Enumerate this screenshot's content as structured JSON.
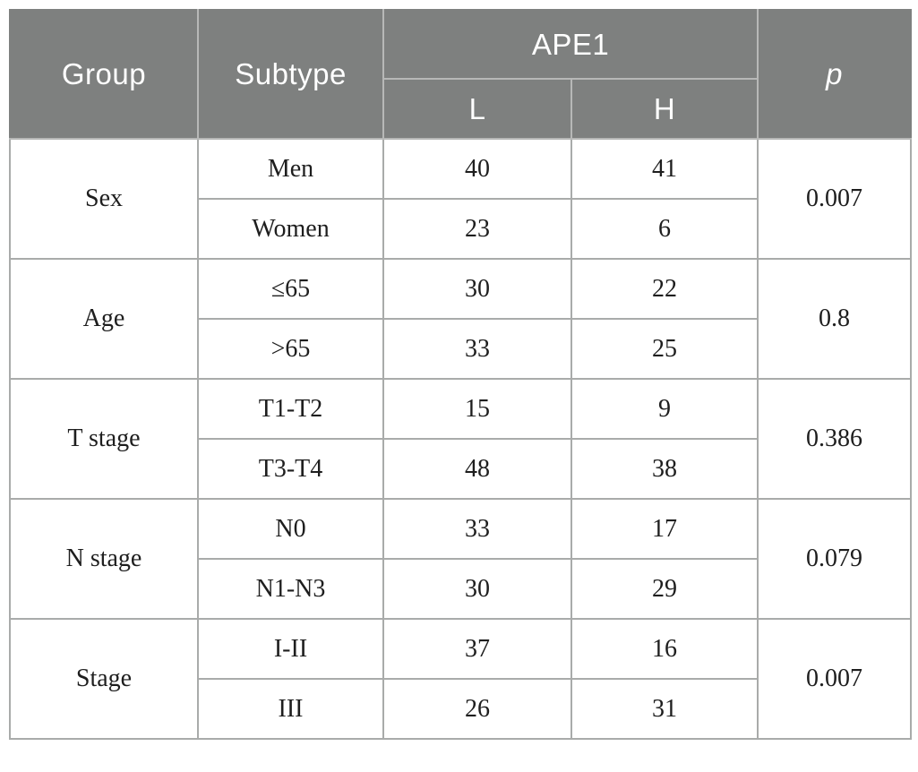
{
  "figure": {
    "columns": {
      "group": "Group",
      "subtype": "Subtype",
      "ape1": "APE1",
      "ape1_low": "L",
      "ape1_high": "H",
      "p": "p"
    },
    "groups": [
      {
        "name": "Sex",
        "p": "0.007",
        "rows": [
          {
            "subtype": "Men",
            "l": "40",
            "h": "41"
          },
          {
            "subtype": "Women",
            "l": "23",
            "h": "6"
          }
        ]
      },
      {
        "name": "Age",
        "p": "0.8",
        "rows": [
          {
            "subtype": "≤65",
            "l": "30",
            "h": "22"
          },
          {
            "subtype": ">65",
            "l": "33",
            "h": "25"
          }
        ]
      },
      {
        "name": "T stage",
        "p": "0.386",
        "rows": [
          {
            "subtype": "T1-T2",
            "l": "15",
            "h": "9"
          },
          {
            "subtype": "T3-T4",
            "l": "48",
            "h": "38"
          }
        ]
      },
      {
        "name": "N stage",
        "p": "0.079",
        "rows": [
          {
            "subtype": "N0",
            "l": "33",
            "h": "17"
          },
          {
            "subtype": "N1-N3",
            "l": "30",
            "h": "29"
          }
        ]
      },
      {
        "name": "Stage",
        "p": "0.007",
        "rows": [
          {
            "subtype": "I-II",
            "l": "37",
            "h": "16"
          },
          {
            "subtype": "III",
            "l": "26",
            "h": "31"
          }
        ]
      }
    ],
    "colors": {
      "header_bg": "#7e807f",
      "header_text": "#ffffff",
      "header_border": "#b7b8b7",
      "body_border": "#a9abaa",
      "body_text": "#1e1e1e",
      "background": "#ffffff"
    }
  }
}
